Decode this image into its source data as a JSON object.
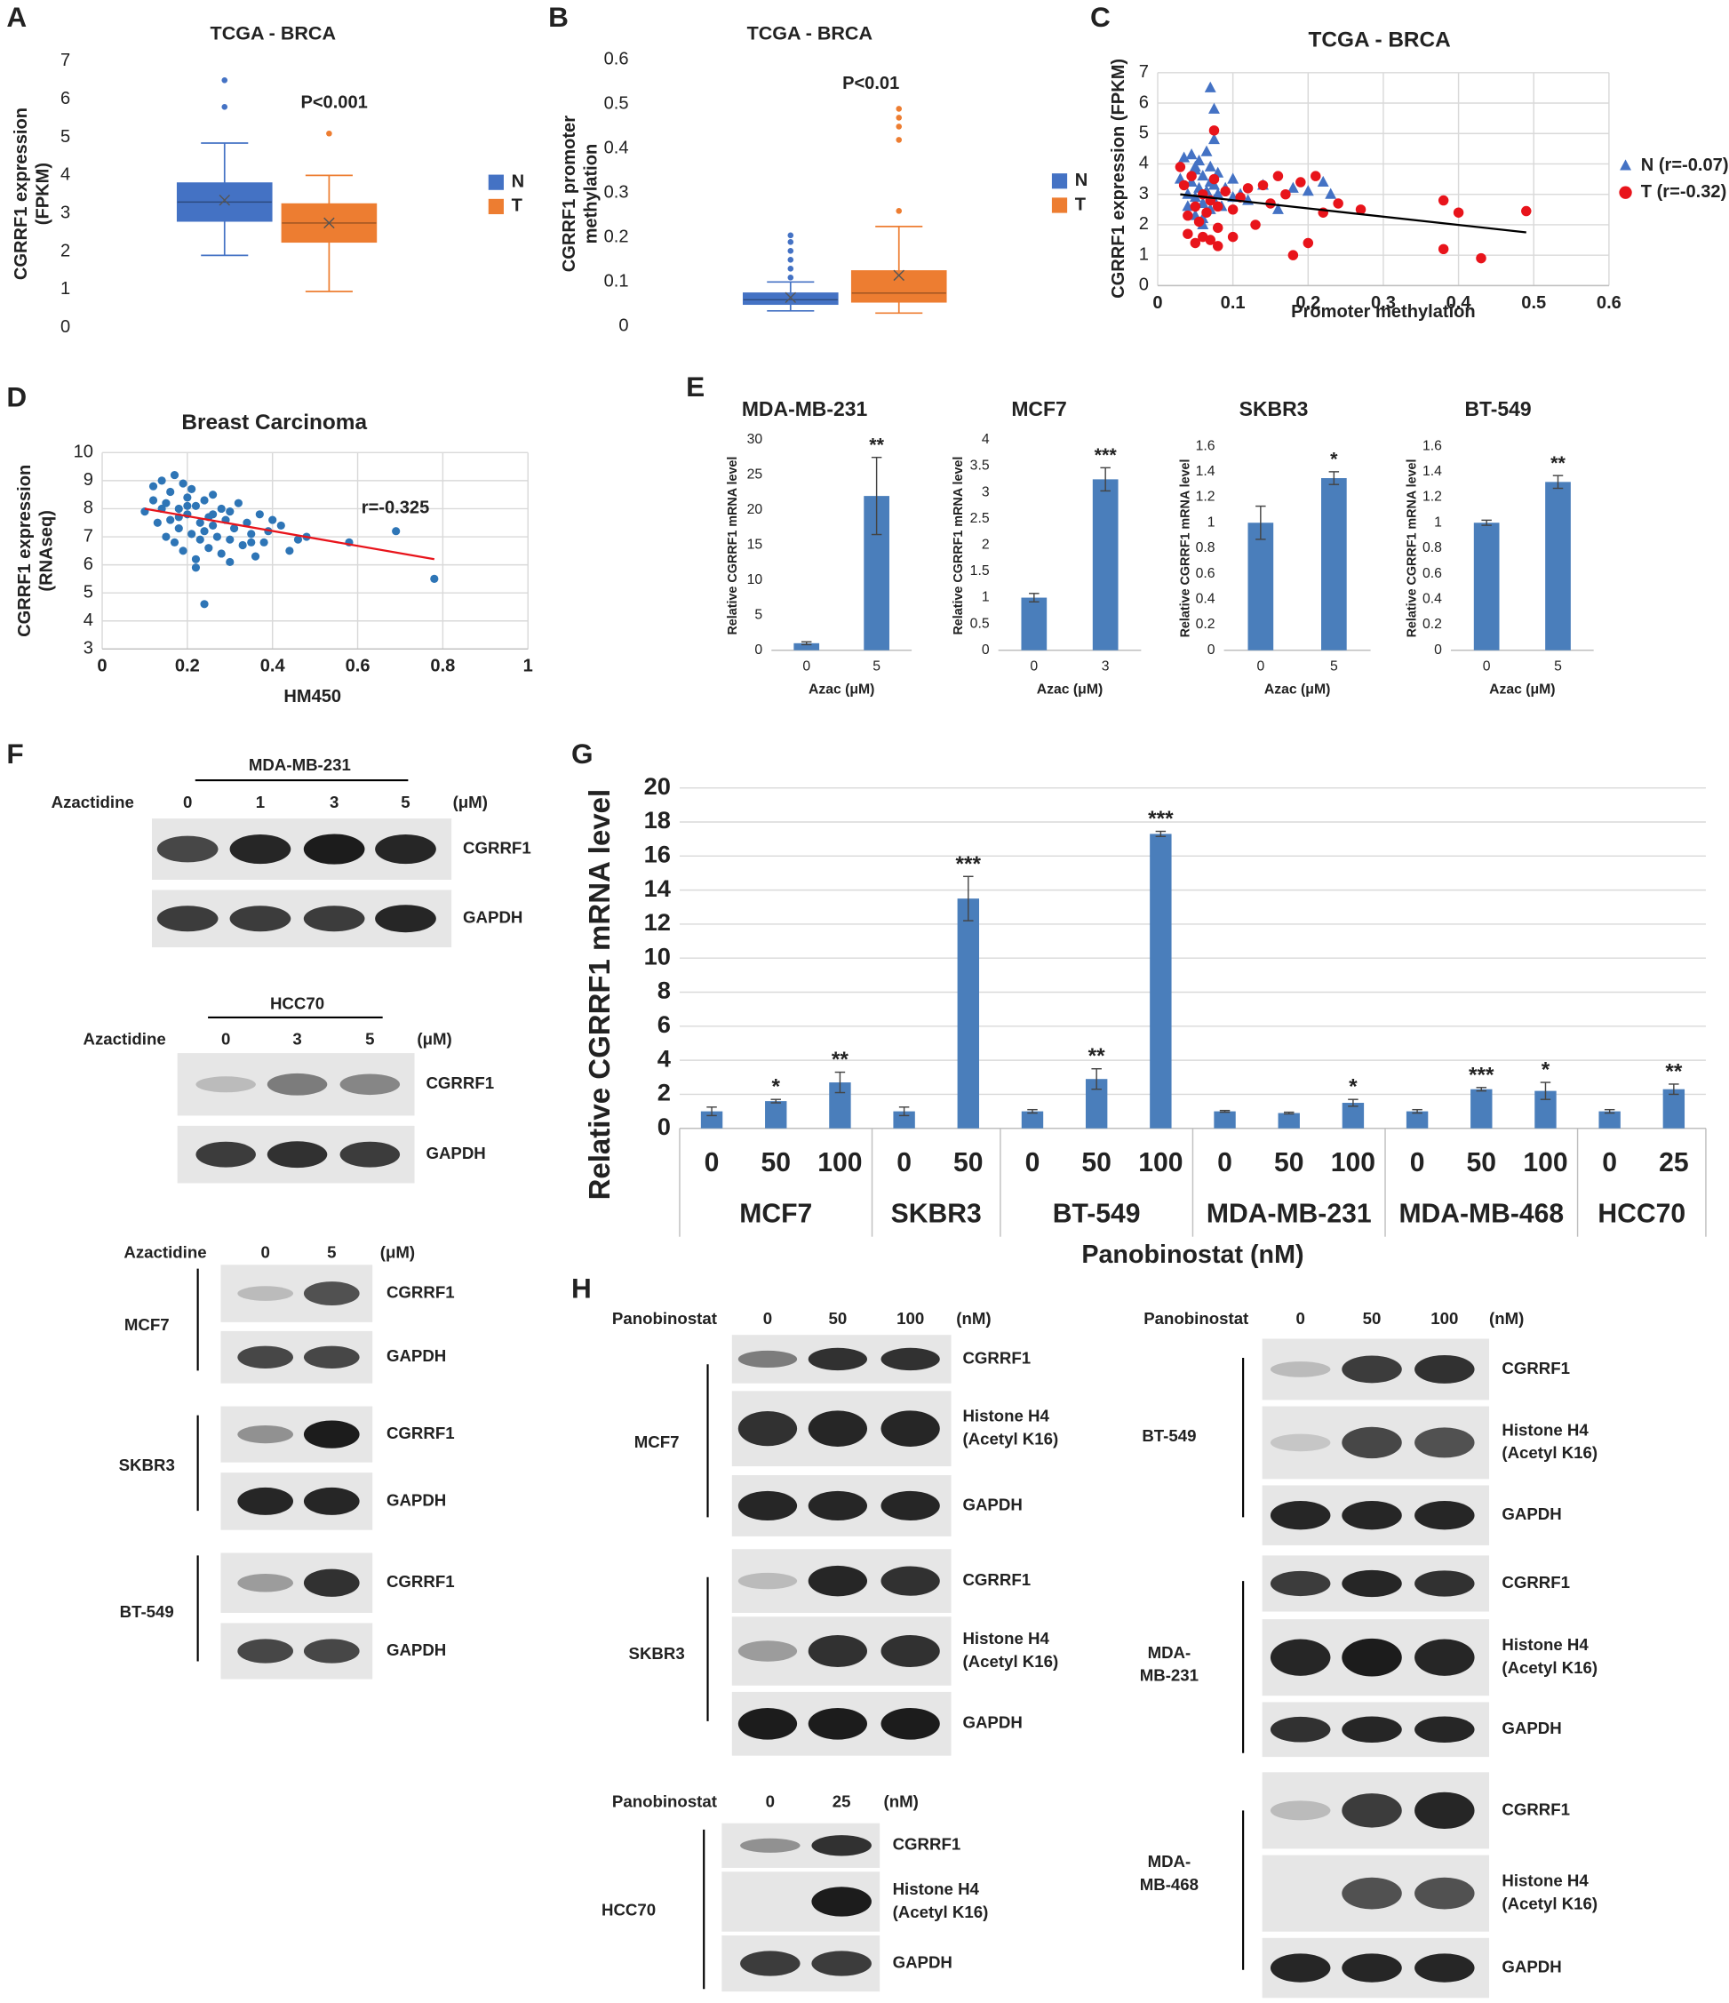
{
  "panel_labels": [
    "A",
    "B",
    "C",
    "D",
    "E",
    "F",
    "G",
    "H"
  ],
  "chart_data": [
    {
      "type": "box",
      "title": "TCGA - BRCA",
      "y_label": [
        "CGRRF1 expression",
        "(FPKM)"
      ],
      "annotation": "P<0.001",
      "ylim": [
        0,
        7
      ],
      "yticks": [
        0,
        1,
        2,
        3,
        4,
        5,
        6,
        7
      ],
      "grid": false,
      "series": [
        {
          "name": "N",
          "color": "#4472c4",
          "whisker_low": 1.9,
          "q1": 2.8,
          "median": 3.3,
          "q3": 3.8,
          "whisker_high": 4.85,
          "mean": 3.35,
          "outliers": [
            5.8,
            6.5
          ]
        },
        {
          "name": "T",
          "color": "#ed7d31",
          "whisker_low": 0.95,
          "q1": 2.25,
          "median": 2.75,
          "q3": 3.25,
          "whisker_high": 4.0,
          "mean": 2.75,
          "outliers": [
            5.1
          ]
        }
      ]
    },
    {
      "type": "box",
      "title": "TCGA - BRCA",
      "y_label": [
        "CGRRF1 promoter",
        "methylation"
      ],
      "annotation": "P<0.01",
      "ylim": [
        0,
        0.6
      ],
      "yticks": [
        0,
        0.1,
        0.2,
        0.3,
        0.4,
        0.5,
        0.6
      ],
      "grid": false,
      "series": [
        {
          "name": "N",
          "color": "#4472c4",
          "whisker_low": 0.035,
          "q1": 0.05,
          "median": 0.06,
          "q3": 0.075,
          "whisker_high": 0.1,
          "mean": 0.065,
          "outliers": [
            0.11,
            0.13,
            0.15,
            0.17,
            0.19,
            0.205
          ]
        },
        {
          "name": "T",
          "color": "#ed7d31",
          "whisker_low": 0.03,
          "q1": 0.055,
          "median": 0.075,
          "q3": 0.125,
          "whisker_high": 0.225,
          "mean": 0.115,
          "outliers": [
            0.26,
            0.42,
            0.45,
            0.47,
            0.49
          ]
        }
      ]
    },
    {
      "type": "scatter",
      "title": "TCGA - BRCA",
      "x_label": "Promoter methylation",
      "y_label": [
        "CGRRF1 expression (FPKM)"
      ],
      "xlim": [
        0,
        0.6
      ],
      "xticks": [
        0,
        0.1,
        0.2,
        0.3,
        0.4,
        0.5,
        0.6
      ],
      "ylim": [
        0,
        7
      ],
      "yticks": [
        0,
        1,
        2,
        3,
        4,
        5,
        6,
        7
      ],
      "grid": true,
      "series": [
        {
          "name": "N (r=-0.07)",
          "color": "#4472c4",
          "marker": "triangle",
          "x": [
            0.03,
            0.035,
            0.04,
            0.04,
            0.045,
            0.05,
            0.05,
            0.05,
            0.055,
            0.055,
            0.06,
            0.06,
            0.06,
            0.065,
            0.065,
            0.07,
            0.07,
            0.07,
            0.075,
            0.075,
            0.08,
            0.08,
            0.085,
            0.09,
            0.1,
            0.1,
            0.11,
            0.12,
            0.14,
            0.16,
            0.18,
            0.2,
            0.22,
            0.23,
            0.07,
            0.075,
            0.075,
            0.045,
            0.05,
            0.06
          ],
          "y": [
            3.5,
            4.2,
            3.0,
            2.6,
            4.3,
            3.8,
            2.9,
            2.3,
            4.1,
            3.2,
            3.6,
            2.7,
            2.0,
            4.4,
            3.1,
            3.9,
            2.5,
            3.4,
            3.3,
            2.8,
            3.0,
            3.7,
            2.6,
            3.2,
            3.5,
            2.9,
            3.0,
            2.8,
            3.3,
            2.5,
            3.2,
            3.1,
            3.4,
            3.0,
            6.5,
            5.8,
            4.8,
            3.4,
            3.9,
            2.2
          ]
        },
        {
          "name": "T (r=-0.32)",
          "color": "#e8141b",
          "marker": "circle",
          "x": [
            0.03,
            0.035,
            0.04,
            0.04,
            0.045,
            0.05,
            0.05,
            0.055,
            0.06,
            0.06,
            0.065,
            0.07,
            0.07,
            0.075,
            0.08,
            0.08,
            0.09,
            0.1,
            0.1,
            0.11,
            0.12,
            0.13,
            0.14,
            0.15,
            0.16,
            0.17,
            0.18,
            0.19,
            0.2,
            0.21,
            0.22,
            0.24,
            0.27,
            0.38,
            0.38,
            0.4,
            0.43,
            0.49,
            0.075,
            0.08
          ],
          "y": [
            3.9,
            3.3,
            2.3,
            1.7,
            3.6,
            2.6,
            1.4,
            2.1,
            3.0,
            1.6,
            2.4,
            1.5,
            2.8,
            5.1,
            1.9,
            2.6,
            3.1,
            2.5,
            1.6,
            2.9,
            3.2,
            2.0,
            3.3,
            2.7,
            3.6,
            3.0,
            1.0,
            3.4,
            1.4,
            3.6,
            2.4,
            2.7,
            2.5,
            2.8,
            1.2,
            2.4,
            0.9,
            2.45,
            3.5,
            1.3
          ]
        }
      ],
      "trendline": {
        "color": "#000000",
        "x": [
          0.03,
          0.49
        ],
        "y": [
          3.0,
          1.75
        ]
      }
    },
    {
      "type": "scatter",
      "title": "Breast Carcinoma",
      "x_label": "HM450",
      "y_label": [
        "CGRRF1 expression",
        "(RNAseq)"
      ],
      "annotation": "r=-0.325",
      "xlim": [
        0,
        1
      ],
      "xticks": [
        0,
        0.2,
        0.4,
        0.6,
        0.8,
        1
      ],
      "ylim": [
        3,
        10
      ],
      "yticks": [
        3,
        4,
        5,
        6,
        7,
        8,
        9,
        10
      ],
      "grid": true,
      "series": [
        {
          "color": "#2e75b6",
          "marker": "circle",
          "x": [
            0.1,
            0.12,
            0.13,
            0.14,
            0.15,
            0.15,
            0.16,
            0.16,
            0.17,
            0.17,
            0.18,
            0.18,
            0.19,
            0.19,
            0.2,
            0.2,
            0.21,
            0.21,
            0.22,
            0.22,
            0.23,
            0.23,
            0.24,
            0.24,
            0.25,
            0.25,
            0.26,
            0.26,
            0.27,
            0.28,
            0.28,
            0.29,
            0.3,
            0.3,
            0.31,
            0.32,
            0.33,
            0.34,
            0.35,
            0.36,
            0.37,
            0.38,
            0.39,
            0.4,
            0.42,
            0.44,
            0.46,
            0.48,
            0.58,
            0.69,
            0.78,
            0.24,
            0.14,
            0.18,
            0.2,
            0.22,
            0.26,
            0.3,
            0.12,
            0.35
          ],
          "y": [
            7.9,
            8.8,
            7.5,
            9.0,
            8.2,
            7.0,
            8.6,
            7.6,
            9.2,
            6.8,
            8.0,
            7.3,
            8.9,
            6.5,
            8.4,
            7.8,
            7.1,
            8.7,
            6.2,
            8.1,
            7.5,
            6.9,
            8.3,
            7.2,
            7.7,
            6.6,
            8.5,
            7.4,
            7.0,
            8.0,
            6.4,
            7.6,
            7.9,
            6.9,
            7.3,
            8.2,
            6.7,
            7.5,
            7.1,
            6.3,
            7.8,
            6.8,
            7.2,
            7.6,
            7.4,
            6.5,
            6.9,
            7.0,
            6.8,
            7.2,
            5.5,
            4.6,
            8.0,
            7.7,
            8.1,
            5.9,
            7.8,
            6.1,
            8.3,
            6.8
          ]
        }
      ],
      "trendline": {
        "color": "#e8141b",
        "x": [
          0.1,
          0.78
        ],
        "y": [
          8.0,
          6.2
        ]
      }
    },
    {
      "type": "bar",
      "title": "MDA-MB-231",
      "x_label": "Azac (μM)",
      "y_label": [
        "Relative CGRRF1 mRNA level"
      ],
      "color": "#4a7ebb",
      "categories": [
        "0",
        "5"
      ],
      "values": [
        1,
        22
      ],
      "errors": [
        0.2,
        5.5
      ],
      "annotations": [
        null,
        "**"
      ],
      "ylim": [
        0,
        30
      ],
      "yticks": [
        0,
        5,
        10,
        15,
        20,
        25,
        30
      ],
      "grid": false
    },
    {
      "type": "bar",
      "title": "MCF7",
      "x_label": "Azac (μM)",
      "y_label": [
        "Relative CGRRF1 mRNA level"
      ],
      "color": "#4a7ebb",
      "categories": [
        "0",
        "3"
      ],
      "values": [
        1,
        3.25
      ],
      "errors": [
        0.08,
        0.22
      ],
      "annotations": [
        null,
        "***"
      ],
      "ylim": [
        0,
        4
      ],
      "yticks": [
        0,
        0.5,
        1,
        1.5,
        2,
        2.5,
        3,
        3.5,
        4
      ],
      "grid": false
    },
    {
      "type": "bar",
      "title": "SKBR3",
      "x_label": "Azac (μM)",
      "y_label": [
        "Relative CGRRF1 mRNA level"
      ],
      "color": "#4a7ebb",
      "categories": [
        "0",
        "5"
      ],
      "values": [
        1,
        1.35
      ],
      "errors": [
        0.13,
        0.05
      ],
      "annotations": [
        null,
        "*"
      ],
      "ylim": [
        0,
        1.6
      ],
      "yticks": [
        0,
        0.2,
        0.4,
        0.6,
        0.8,
        1,
        1.2,
        1.4,
        1.6
      ],
      "grid": false
    },
    {
      "type": "bar",
      "title": "BT-549",
      "x_label": "Azac (μM)",
      "y_label": [
        "Relative CGRRF1 mRNA level"
      ],
      "color": "#4a7ebb",
      "categories": [
        "0",
        "5"
      ],
      "values": [
        1,
        1.32
      ],
      "errors": [
        0.02,
        0.05
      ],
      "annotations": [
        null,
        "**"
      ],
      "ylim": [
        0,
        1.6
      ],
      "yticks": [
        0,
        0.2,
        0.4,
        0.6,
        0.8,
        1,
        1.2,
        1.4,
        1.6
      ],
      "grid": false
    },
    {
      "type": "grouped_bar",
      "x_label": "Panobinostat (nM)",
      "y_label": [
        "Relative CGRRF1 mRNA level"
      ],
      "color": "#4a7ebb",
      "ylim": [
        0,
        20
      ],
      "yticks": [
        0,
        2,
        4,
        6,
        8,
        10,
        12,
        14,
        16,
        18,
        20
      ],
      "grid": true,
      "groups": [
        {
          "name": "MCF7",
          "categories": [
            "0",
            "50",
            "100"
          ],
          "values": [
            1.0,
            1.6,
            2.7
          ],
          "errors": [
            0.25,
            0.1,
            0.6
          ],
          "annotations": [
            null,
            "*",
            "**"
          ]
        },
        {
          "name": "SKBR3",
          "categories": [
            "0",
            "50"
          ],
          "values": [
            1.0,
            13.5
          ],
          "errors": [
            0.25,
            1.3
          ],
          "annotations": [
            null,
            "***"
          ]
        },
        {
          "name": "BT-549",
          "categories": [
            "0",
            "50",
            "100"
          ],
          "values": [
            1.0,
            2.9,
            17.3
          ],
          "errors": [
            0.1,
            0.6,
            0.15
          ],
          "annotations": [
            null,
            "**",
            "***"
          ]
        },
        {
          "name": "MDA-MB-231",
          "categories": [
            "0",
            "50",
            "100"
          ],
          "values": [
            1.0,
            0.9,
            1.5
          ],
          "errors": [
            0.05,
            0.05,
            0.2
          ],
          "annotations": [
            null,
            null,
            "*"
          ]
        },
        {
          "name": "MDA-MB-468",
          "categories": [
            "0",
            "50",
            "100"
          ],
          "values": [
            1.0,
            2.3,
            2.2
          ],
          "errors": [
            0.1,
            0.1,
            0.5
          ],
          "annotations": [
            null,
            "***",
            "*"
          ]
        },
        {
          "name": "HCC70",
          "categories": [
            "0",
            "25"
          ],
          "values": [
            1.0,
            2.3
          ],
          "errors": [
            0.1,
            0.3
          ],
          "annotations": [
            null,
            "**"
          ]
        }
      ]
    }
  ],
  "blots": [
    {
      "title": "MDA-MB-231",
      "treatment": "Azactidine",
      "lanes": [
        "0",
        "1",
        "3",
        "5"
      ],
      "unit": "(μM)",
      "cell_lines": [
        {
          "rows": [
            [
              "CGRRF1"
            ],
            [
              "GAPDH"
            ]
          ]
        }
      ]
    },
    {
      "title": "HCC70",
      "treatment": "Azactidine",
      "lanes": [
        "0",
        "3",
        "5"
      ],
      "unit": "(μM)",
      "cell_lines": [
        {
          "rows": [
            [
              "CGRRF1"
            ],
            [
              "GAPDH"
            ]
          ]
        }
      ]
    },
    {
      "treatment": "Azactidine",
      "lanes": [
        "0",
        "5"
      ],
      "unit": "(μM)",
      "cell_lines": [
        {
          "name": [
            "MCF7"
          ],
          "rows": [
            [
              "CGRRF1"
            ],
            [
              "GAPDH"
            ]
          ]
        },
        {
          "name": [
            "SKBR3"
          ],
          "rows": [
            [
              "CGRRF1"
            ],
            [
              "GAPDH"
            ]
          ]
        },
        {
          "name": [
            "BT-549"
          ],
          "rows": [
            [
              "CGRRF1"
            ],
            [
              "GAPDH"
            ]
          ]
        }
      ]
    },
    {
      "treatment": "Panobinostat",
      "lanes": [
        "0",
        "50",
        "100"
      ],
      "unit": "(nM)",
      "cell_lines": [
        {
          "name": [
            "MCF7"
          ],
          "rows": [
            [
              "CGRRF1"
            ],
            [
              "Histone H4",
              "(Acetyl K16)"
            ],
            [
              "GAPDH"
            ]
          ]
        },
        {
          "name": [
            "SKBR3"
          ],
          "rows": [
            [
              "CGRRF1"
            ],
            [
              "Histone H4",
              "(Acetyl K16)"
            ],
            [
              "GAPDH"
            ]
          ]
        }
      ]
    },
    {
      "treatment": "Panobinostat",
      "lanes": [
        "0",
        "25"
      ],
      "unit": "(nM)",
      "cell_lines": [
        {
          "name": [
            "HCC70"
          ],
          "rows": [
            [
              "CGRRF1"
            ],
            [
              "Histone H4",
              "(Acetyl K16)"
            ],
            [
              "GAPDH"
            ]
          ]
        }
      ]
    },
    {
      "treatment": "Panobinostat",
      "lanes": [
        "0",
        "50",
        "100"
      ],
      "unit": "(nM)",
      "cell_lines": [
        {
          "name": [
            "BT-549"
          ],
          "rows": [
            [
              "CGRRF1"
            ],
            [
              "Histone H4",
              "(Acetyl K16)"
            ],
            [
              "GAPDH"
            ]
          ]
        },
        {
          "name": [
            "MDA-",
            "MB-231"
          ],
          "rows": [
            [
              "CGRRF1"
            ],
            [
              "Histone H4",
              "(Acetyl K16)"
            ],
            [
              "GAPDH"
            ]
          ]
        },
        {
          "name": [
            "MDA-",
            "MB-468"
          ],
          "rows": [
            [
              "CGRRF1"
            ],
            [
              "Histone H4",
              "(Acetyl K16)"
            ],
            [
              "GAPDH"
            ]
          ]
        }
      ]
    }
  ]
}
